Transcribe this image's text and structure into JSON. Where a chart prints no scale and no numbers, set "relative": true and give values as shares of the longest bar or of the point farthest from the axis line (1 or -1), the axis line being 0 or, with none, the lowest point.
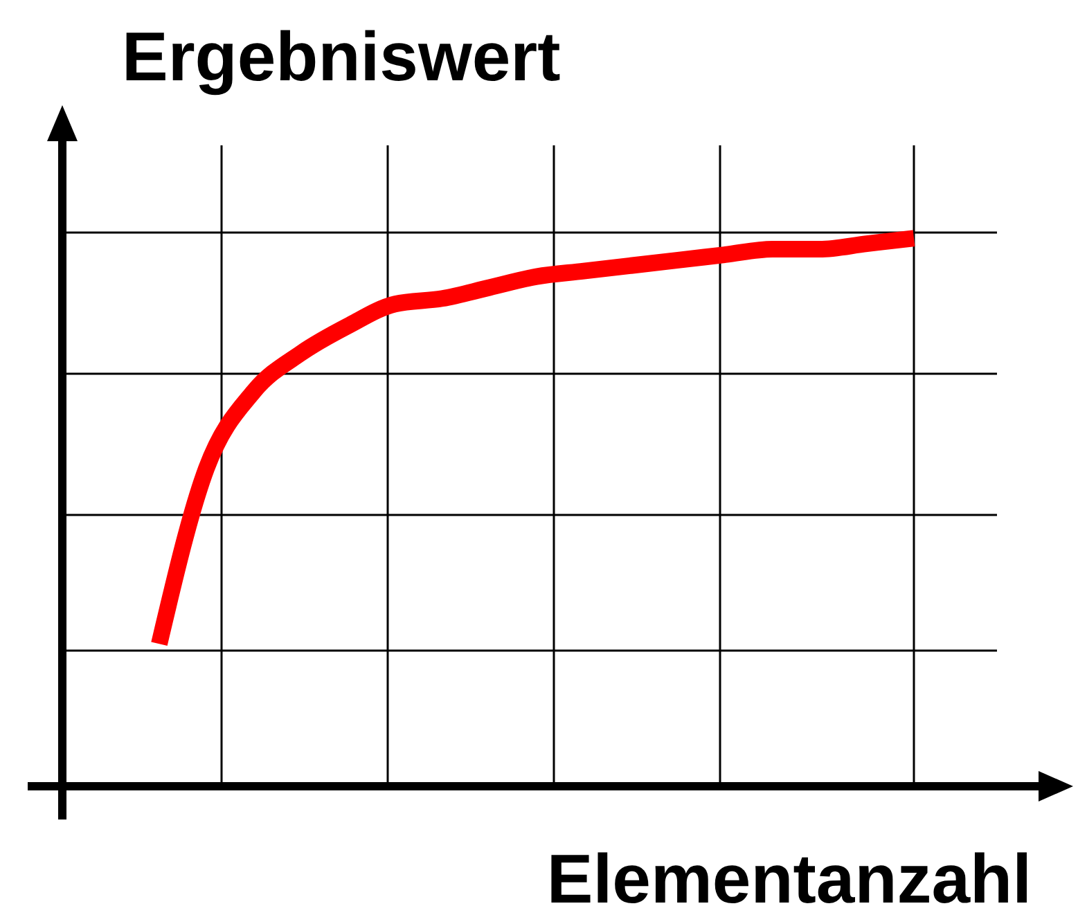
{
  "chart_data": {
    "type": "line",
    "xlabel": "Elementanzahl",
    "ylabel": "Ergebniswert",
    "relative": true,
    "categories": [
      null,
      null,
      null,
      null,
      null,
      null,
      null,
      null,
      null,
      null,
      null,
      null,
      null,
      null,
      null,
      null,
      null
    ],
    "series": [
      {
        "color": "#ff0000",
        "values": [
          0.26,
          0.58,
          0.72,
          0.79,
          0.84,
          0.88,
          0.89,
          0.91,
          0.93,
          0.94,
          0.95,
          0.96,
          0.97,
          0.98,
          0.98,
          0.99,
          1
        ]
      }
    ],
    "grid": true,
    "marker": "none",
    "line_style": "solid"
  }
}
